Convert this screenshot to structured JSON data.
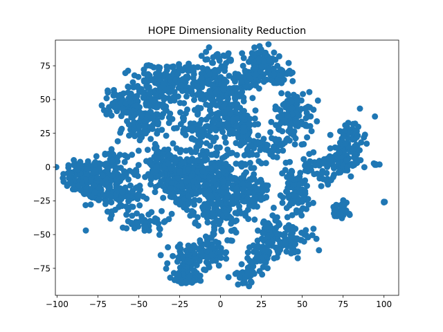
{
  "chart_data": {
    "type": "scatter",
    "title": "HOPE Dimensionality Reduction",
    "xlabel": "",
    "ylabel": "",
    "xlim": [
      -101,
      109
    ],
    "ylim": [
      -95,
      94
    ],
    "xticks": [
      -100,
      -75,
      -50,
      -25,
      0,
      25,
      50,
      75,
      100
    ],
    "yticks": [
      -75,
      -50,
      -25,
      0,
      25,
      50,
      75
    ],
    "grid": false,
    "legend": "none",
    "marker_color": "#1f77b4",
    "clusters": [
      {
        "center": [
          -85,
          -8
        ],
        "spread": [
          6,
          7
        ],
        "count": 90
      },
      {
        "center": [
          -70,
          -5
        ],
        "spread": [
          8,
          10
        ],
        "count": 140
      },
      {
        "center": [
          -62,
          -22
        ],
        "spread": [
          7,
          7
        ],
        "count": 80
      },
      {
        "center": [
          -60,
          48
        ],
        "spread": [
          6,
          5
        ],
        "count": 60
      },
      {
        "center": [
          -50,
          30
        ],
        "spread": [
          6,
          6
        ],
        "count": 50
      },
      {
        "center": [
          -40,
          50
        ],
        "spread": [
          10,
          12
        ],
        "count": 170
      },
      {
        "center": [
          -30,
          65
        ],
        "spread": [
          6,
          6
        ],
        "count": 60
      },
      {
        "center": [
          -35,
          0
        ],
        "spread": [
          8,
          8
        ],
        "count": 120
      },
      {
        "center": [
          -25,
          -15
        ],
        "spread": [
          7,
          8
        ],
        "count": 100
      },
      {
        "center": [
          -45,
          -40
        ],
        "spread": [
          6,
          5
        ],
        "count": 40
      },
      {
        "center": [
          -10,
          60
        ],
        "spread": [
          8,
          8
        ],
        "count": 120
      },
      {
        "center": [
          5,
          45
        ],
        "spread": [
          7,
          8
        ],
        "count": 100
      },
      {
        "center": [
          10,
          30
        ],
        "spread": [
          8,
          6
        ],
        "count": 80
      },
      {
        "center": [
          15,
          65
        ],
        "spread": [
          7,
          6
        ],
        "count": 60
      },
      {
        "center": [
          25,
          78
        ],
        "spread": [
          4,
          5
        ],
        "count": 60
      },
      {
        "center": [
          35,
          70
        ],
        "spread": [
          4,
          5
        ],
        "count": 40
      },
      {
        "center": [
          -15,
          25
        ],
        "spread": [
          6,
          6
        ],
        "count": 50
      },
      {
        "center": [
          -10,
          0
        ],
        "spread": [
          10,
          8
        ],
        "count": 140
      },
      {
        "center": [
          5,
          -15
        ],
        "spread": [
          8,
          10
        ],
        "count": 160
      },
      {
        "center": [
          -5,
          -30
        ],
        "spread": [
          8,
          7
        ],
        "count": 100
      },
      {
        "center": [
          20,
          -20
        ],
        "spread": [
          5,
          8
        ],
        "count": 60
      },
      {
        "center": [
          30,
          15
        ],
        "spread": [
          8,
          6
        ],
        "count": 70
      },
      {
        "center": [
          45,
          40
        ],
        "spread": [
          6,
          8
        ],
        "count": 100
      },
      {
        "center": [
          45,
          -20
        ],
        "spread": [
          6,
          10
        ],
        "count": 90
      },
      {
        "center": [
          60,
          0
        ],
        "spread": [
          5,
          5
        ],
        "count": 40
      },
      {
        "center": [
          75,
          5
        ],
        "spread": [
          5,
          6
        ],
        "count": 70
      },
      {
        "center": [
          80,
          20
        ],
        "spread": [
          4,
          8
        ],
        "count": 70
      },
      {
        "center": [
          73,
          -33
        ],
        "spread": [
          3,
          3
        ],
        "count": 35
      },
      {
        "center": [
          95,
          2
        ],
        "spread": [
          1,
          1
        ],
        "count": 6
      },
      {
        "center": [
          100,
          -26
        ],
        "spread": [
          0.4,
          0.4
        ],
        "count": 3
      },
      {
        "center": [
          30,
          -48
        ],
        "spread": [
          6,
          6
        ],
        "count": 60
      },
      {
        "center": [
          45,
          -55
        ],
        "spread": [
          6,
          5
        ],
        "count": 50
      },
      {
        "center": [
          25,
          -65
        ],
        "spread": [
          6,
          6
        ],
        "count": 60
      },
      {
        "center": [
          15,
          -80
        ],
        "spread": [
          4,
          4
        ],
        "count": 30
      },
      {
        "center": [
          -20,
          -70
        ],
        "spread": [
          6,
          6
        ],
        "count": 80
      },
      {
        "center": [
          -22,
          -82
        ],
        "spread": [
          4,
          3
        ],
        "count": 80
      },
      {
        "center": [
          -5,
          -60
        ],
        "spread": [
          7,
          6
        ],
        "count": 60
      },
      {
        "center": [
          0,
          80
        ],
        "spread": [
          6,
          4
        ],
        "count": 30
      }
    ]
  }
}
